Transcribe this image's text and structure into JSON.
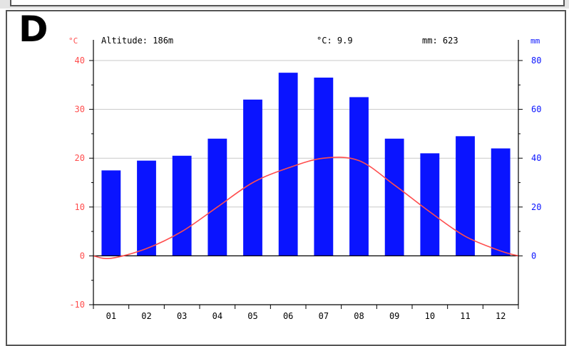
{
  "panel": {
    "letter": "D"
  },
  "header": {
    "altitude": "Altitude: 186m",
    "mean_temp": "°C: 9.9",
    "precip_total": "mm: 623"
  },
  "colors": {
    "temperature": "#ff4d4d",
    "precipitation": "#0a14ff",
    "axis": "#000000",
    "grid": "#c8c8c8"
  },
  "chart_data": {
    "type": "bar",
    "title": "",
    "categories": [
      "01",
      "02",
      "03",
      "04",
      "05",
      "06",
      "07",
      "08",
      "09",
      "10",
      "11",
      "12"
    ],
    "y_left": {
      "label": "°C",
      "ylim": [
        -10,
        40
      ],
      "ticks": [
        "-10",
        "0",
        "10",
        "20",
        "30",
        "40"
      ]
    },
    "y_right": {
      "label": "mm",
      "ylim": [
        0,
        80
      ],
      "ticks": [
        "0",
        "20",
        "40",
        "60",
        "80"
      ]
    },
    "grid": true,
    "series": [
      {
        "kind": "bar",
        "axis": "right",
        "values": [
          35,
          39,
          41,
          48,
          64,
          75,
          73,
          65,
          48,
          42,
          49,
          44
        ]
      },
      {
        "kind": "line",
        "axis": "left",
        "values": [
          -0.5,
          1.5,
          5,
          10,
          15,
          18,
          20,
          19.5,
          14.5,
          9,
          4,
          1
        ]
      }
    ]
  }
}
